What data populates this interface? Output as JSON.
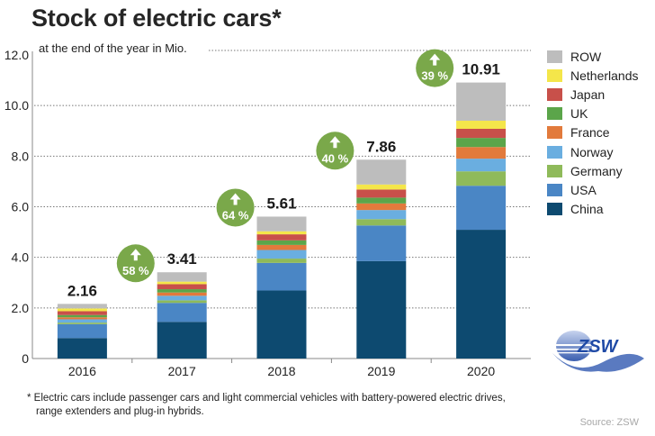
{
  "header": {
    "title": "Stock of electric cars*",
    "subtitle": "at the end of the year in Mio."
  },
  "footnote": {
    "line1": "* Electric cars include passenger cars and light commercial vehicles with battery-powered electric drives,",
    "line2": "range extenders and plug-in hybrids."
  },
  "source": "Source: ZSW",
  "logo": {
    "text": "ZSW",
    "icon": "zsw-logo-icon"
  },
  "colors": {
    "China": "#0d4a70",
    "USA": "#4a86c5",
    "Germany": "#8fba5a",
    "Norway": "#6aaee0",
    "France": "#e27a3c",
    "UK": "#5ba54a",
    "Japan": "#c8504a",
    "Netherlands": "#f4e64a",
    "ROW": "#bdbdbd",
    "badge": "#7aa84a"
  },
  "chart_data": {
    "type": "bar",
    "stacked": true,
    "title": "Stock of electric cars*",
    "subtitle": "at the end of the year in Mio.",
    "xlabel": "",
    "ylabel": "",
    "ylim": [
      0,
      12
    ],
    "yticks": [
      0,
      2,
      4,
      6,
      8,
      10,
      12
    ],
    "ytick_labels": [
      "0",
      "2.0",
      "4.0",
      "6.0",
      "8.0",
      "10.0",
      "12.0"
    ],
    "grid": "dotted horizontal",
    "legend_position": "right",
    "categories": [
      "2016",
      "2017",
      "2018",
      "2019",
      "2020"
    ],
    "totals": [
      2.16,
      3.41,
      5.61,
      7.86,
      10.91
    ],
    "total_labels": [
      "2.16",
      "3.41",
      "5.61",
      "7.86",
      "10.91"
    ],
    "growth": [
      {
        "between": [
          "2016",
          "2017"
        ],
        "label": "58 %"
      },
      {
        "between": [
          "2017",
          "2018"
        ],
        "label": "64 %"
      },
      {
        "between": [
          "2018",
          "2019"
        ],
        "label": "40 %"
      },
      {
        "between": [
          "2019",
          "2020"
        ],
        "label": "39 %"
      }
    ],
    "series": [
      {
        "name": "China",
        "values": [
          0.81,
          1.45,
          2.69,
          3.85,
          5.09
        ]
      },
      {
        "name": "USA",
        "values": [
          0.55,
          0.75,
          1.09,
          1.41,
          1.74
        ]
      },
      {
        "name": "Germany",
        "values": [
          0.06,
          0.1,
          0.17,
          0.25,
          0.57
        ]
      },
      {
        "name": "Norway",
        "values": [
          0.13,
          0.18,
          0.34,
          0.36,
          0.5
        ]
      },
      {
        "name": "France",
        "values": [
          0.08,
          0.13,
          0.2,
          0.26,
          0.46
        ]
      },
      {
        "name": "UK",
        "values": [
          0.09,
          0.13,
          0.18,
          0.23,
          0.36
        ]
      },
      {
        "name": "Japan",
        "values": [
          0.15,
          0.2,
          0.24,
          0.32,
          0.36
        ]
      },
      {
        "name": "Netherlands",
        "values": [
          0.11,
          0.1,
          0.12,
          0.2,
          0.32
        ]
      },
      {
        "name": "ROW",
        "values": [
          0.18,
          0.37,
          0.58,
          0.98,
          1.51
        ]
      }
    ],
    "legend_order": [
      "ROW",
      "Netherlands",
      "Japan",
      "UK",
      "France",
      "Norway",
      "Germany",
      "USA",
      "China"
    ]
  }
}
